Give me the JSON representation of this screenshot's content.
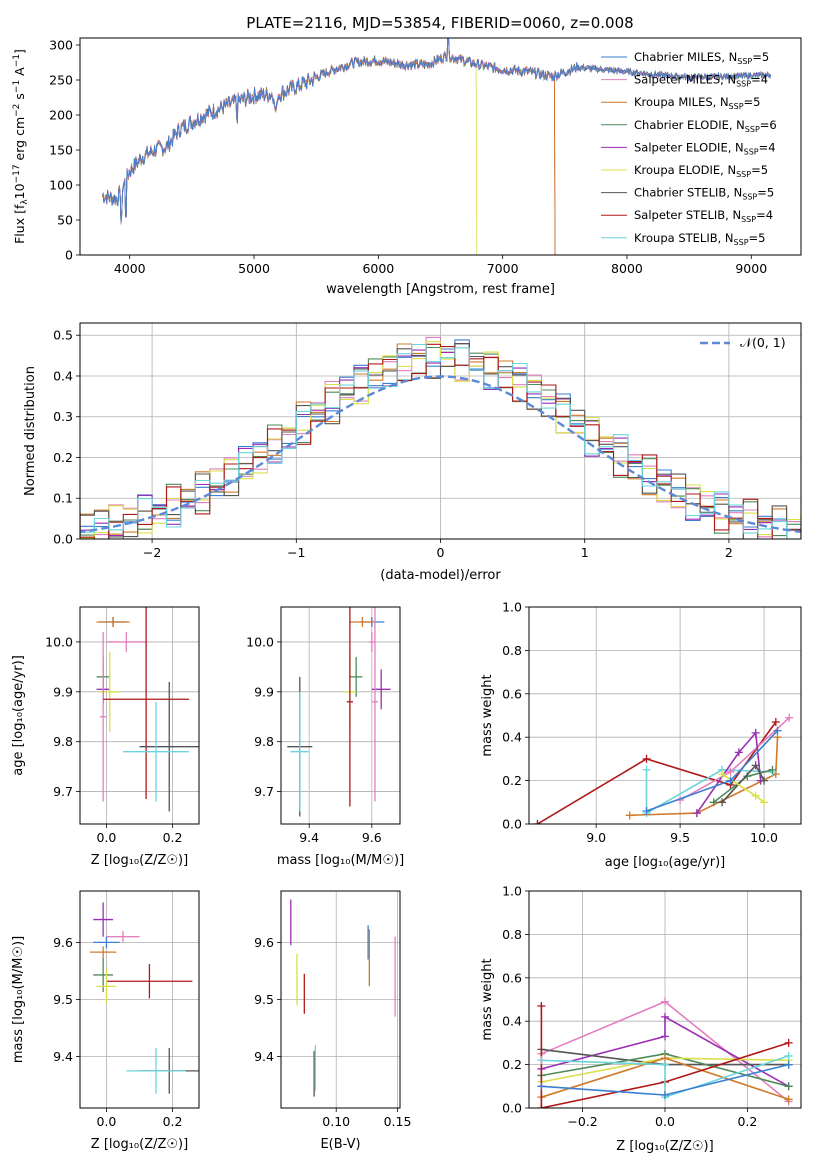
{
  "title": "PLATE=2116, MJD=53854, FIBERID=0060, z=0.008",
  "colors": {
    "c_miles": "#3a7fd0",
    "s_miles": "#e37fbf",
    "k_miles": "#d07a2a",
    "c_elodie": "#4f8a5a",
    "s_elodie": "#9a2fb5",
    "k_elodie": "#d9e04a",
    "c_stelib": "#555555",
    "s_stelib": "#b01818",
    "k_stelib": "#6cd4dc",
    "gauss": "#5b8ad6"
  },
  "legend_entries": [
    {
      "key": "c_miles",
      "prefix": "Chabrier MILES, N",
      "n": "5"
    },
    {
      "key": "s_miles",
      "prefix": "Salpeter MILES, N",
      "n": "4"
    },
    {
      "key": "k_miles",
      "prefix": "Kroupa MILES, N",
      "n": "5"
    },
    {
      "key": "c_elodie",
      "prefix": "Chabrier ELODIE, N",
      "n": "6"
    },
    {
      "key": "s_elodie",
      "prefix": "Salpeter ELODIE, N",
      "n": "4"
    },
    {
      "key": "k_elodie",
      "prefix": "Kroupa ELODIE, N",
      "n": "5"
    },
    {
      "key": "c_stelib",
      "prefix": "Chabrier STELIB, N",
      "n": "5"
    },
    {
      "key": "s_stelib",
      "prefix": "Salpeter STELIB, N",
      "n": "4"
    },
    {
      "key": "k_stelib",
      "prefix": "Kroupa STELIB, N",
      "n": "5"
    }
  ],
  "legend_sub": "SSP",
  "gauss_label": "𝒩(0, 1)",
  "chart_data": [
    {
      "id": "spectrum",
      "type": "line",
      "xlabel": "wavelength [Angstrom, rest frame]",
      "ylabel": "Flux [f",
      "ylabel_sub": "λ",
      "ylabel_mid": "10",
      "ylabel_sup1": "−17",
      "ylabel_tail": " erg cm",
      "ylabel_sup2": "−2",
      "ylabel_tail2": " s",
      "ylabel_sup3": "−1",
      "ylabel_tail3": " A",
      "ylabel_sup4": "−1",
      "ylabel_end": "]",
      "xlim": [
        3600,
        9400
      ],
      "ylim": [
        0,
        310
      ],
      "xticks": [
        4000,
        5000,
        6000,
        7000,
        8000,
        9000
      ],
      "yticks": [
        0,
        50,
        100,
        150,
        200,
        250,
        300
      ],
      "continuum": [
        [
          3780,
          85
        ],
        [
          3900,
          80
        ],
        [
          4000,
          120
        ],
        [
          4100,
          140
        ],
        [
          4200,
          150
        ],
        [
          4300,
          155
        ],
        [
          4400,
          180
        ],
        [
          4600,
          200
        ],
        [
          4800,
          215
        ],
        [
          5000,
          228
        ],
        [
          5200,
          230
        ],
        [
          5400,
          245
        ],
        [
          5600,
          262
        ],
        [
          5800,
          275
        ],
        [
          6000,
          278
        ],
        [
          6200,
          272
        ],
        [
          6400,
          272
        ],
        [
          6550,
          285
        ],
        [
          6800,
          272
        ],
        [
          7000,
          265
        ],
        [
          7200,
          262
        ],
        [
          7400,
          255
        ],
        [
          7600,
          268
        ],
        [
          7800,
          265
        ],
        [
          8000,
          262
        ],
        [
          8200,
          258
        ],
        [
          8500,
          254
        ],
        [
          8800,
          255
        ],
        [
          9100,
          257
        ]
      ],
      "cutoffs": [
        {
          "key": "k_elodie",
          "x": 6790
        },
        {
          "key": "s_stelib",
          "x": 7420
        },
        {
          "key": "k_miles",
          "x": 7420
        }
      ]
    },
    {
      "id": "residuals",
      "type": "step",
      "xlabel": "(data-model)/error",
      "ylabel": "Normed distribution",
      "xlim": [
        -2.5,
        2.5
      ],
      "ylim": [
        0,
        0.53
      ],
      "xticks": [
        -2,
        -1,
        0,
        1,
        2
      ],
      "xticklabels": [
        "−2",
        "−1",
        "0",
        "1",
        "2"
      ],
      "yticks": [
        0,
        0.1,
        0.2,
        0.3,
        0.4,
        0.5
      ],
      "bin_width": 0.1
    },
    {
      "id": "age_vs_Z",
      "type": "errorbar",
      "xlabel": "Z [log₁₀(Z/Z☉)]",
      "ylabel": "age  [log₁₀(age/yr)]",
      "xlim": [
        -0.08,
        0.28
      ],
      "ylim": [
        9.635,
        10.07
      ],
      "xticks": [
        0.0,
        0.2
      ],
      "yticks": [
        9.7,
        9.8,
        9.9,
        10.0
      ],
      "points": [
        {
          "key": "c_miles",
          "x": 0.02,
          "xerr": 0.04,
          "y": 10.04,
          "yerr": 0.01
        },
        {
          "key": "k_miles",
          "x": 0.02,
          "xerr": 0.05,
          "y": 10.04,
          "yerr": 0.01
        },
        {
          "key": "s_miles",
          "x": 0.06,
          "xerr": 0.06,
          "y": 10.0,
          "yerr": 0.02
        },
        {
          "key": "c_elodie",
          "x": -0.01,
          "xerr": 0.02,
          "y": 9.93,
          "yerr": 0.04
        },
        {
          "key": "s_elodie",
          "x": -0.01,
          "xerr": 0.02,
          "y": 9.905,
          "yerr": 0.03
        },
        {
          "key": "k_elodie",
          "x": 0.01,
          "xerr": 0.03,
          "y": 9.9,
          "yerr": 0.08
        },
        {
          "key": "s_miles",
          "x": -0.01,
          "xerr": 0.01,
          "y": 9.85,
          "yerr": 0.17
        },
        {
          "key": "s_stelib",
          "x": 0.12,
          "xerr": 0.13,
          "y": 9.885,
          "yerr": 0.2
        },
        {
          "key": "c_stelib",
          "x": 0.19,
          "xerr": 0.09,
          "y": 9.79,
          "yerr": 0.13
        },
        {
          "key": "k_stelib",
          "x": 0.15,
          "xerr": 0.1,
          "y": 9.78,
          "yerr": 0.1
        }
      ]
    },
    {
      "id": "age_vs_mass",
      "type": "errorbar",
      "xlabel": "mass [log₁₀(M/M☉)]",
      "ylabel": "",
      "xlim": [
        9.31,
        9.69
      ],
      "ylim": [
        9.635,
        10.07
      ],
      "xticks": [
        9.4,
        9.6
      ],
      "yticks": [
        9.7,
        9.8,
        9.9,
        10.0
      ],
      "points": [
        {
          "key": "c_miles",
          "x": 9.6,
          "xerr": 0.04,
          "y": 10.04,
          "yerr": 0.01
        },
        {
          "key": "k_miles",
          "x": 9.57,
          "xerr": 0.04,
          "y": 10.04,
          "yerr": 0.01
        },
        {
          "key": "s_miles",
          "x": 9.6,
          "xerr": 0.01,
          "y": 10.0,
          "yerr": 0.02
        },
        {
          "key": "c_elodie",
          "x": 9.55,
          "xerr": 0.02,
          "y": 9.93,
          "yerr": 0.04
        },
        {
          "key": "s_elodie",
          "x": 9.63,
          "xerr": 0.03,
          "y": 9.905,
          "yerr": 0.04
        },
        {
          "key": "k_elodie",
          "x": 9.53,
          "xerr": 0.02,
          "y": 9.9,
          "yerr": 0.08
        },
        {
          "key": "s_stelib",
          "x": 9.53,
          "xerr": 0.01,
          "y": 9.88,
          "yerr": 0.21
        },
        {
          "key": "c_stelib",
          "x": 9.37,
          "xerr": 0.04,
          "y": 9.79,
          "yerr": 0.14
        },
        {
          "key": "k_stelib",
          "x": 9.37,
          "xerr": 0.03,
          "y": 9.78,
          "yerr": 0.12
        },
        {
          "key": "s_miles",
          "x": 9.61,
          "xerr": 0.01,
          "y": 9.88,
          "yerr": 0.2
        }
      ]
    },
    {
      "id": "weight_vs_age",
      "type": "line",
      "xlabel": "age  [log₁₀(age/yr)]",
      "ylabel": "mass weight",
      "xlim": [
        8.6,
        10.22
      ],
      "ylim": [
        0,
        1
      ],
      "xticks": [
        9.0,
        9.5,
        10.0
      ],
      "yticks": [
        0,
        0.2,
        0.4,
        0.6,
        0.8,
        1.0
      ],
      "series": [
        {
          "key": "s_stelib",
          "x": [
            8.65,
            9.3,
            9.8,
            10.07
          ],
          "y": [
            0.0,
            0.3,
            0.18,
            0.47
          ]
        },
        {
          "key": "k_miles",
          "x": [
            9.2,
            9.6,
            10.07,
            10.08
          ],
          "y": [
            0.04,
            0.05,
            0.23,
            0.4
          ]
        },
        {
          "key": "k_stelib",
          "x": [
            9.3,
            9.3,
            9.75,
            10.05
          ],
          "y": [
            0.25,
            0.05,
            0.25,
            0.24
          ]
        },
        {
          "key": "s_miles",
          "x": [
            9.5,
            9.8,
            10.15
          ],
          "y": [
            0.11,
            0.24,
            0.49
          ]
        },
        {
          "key": "s_elodie",
          "x": [
            9.6,
            9.85,
            9.95,
            9.98
          ],
          "y": [
            0.05,
            0.33,
            0.42,
            0.2
          ]
        },
        {
          "key": "c_elodie",
          "x": [
            9.7,
            9.9,
            10.05
          ],
          "y": [
            0.1,
            0.22,
            0.25
          ]
        },
        {
          "key": "c_stelib",
          "x": [
            9.75,
            9.95,
            10.0
          ],
          "y": [
            0.1,
            0.27,
            0.2
          ]
        },
        {
          "key": "k_elodie",
          "x": [
            9.75,
            9.95,
            10.0
          ],
          "y": [
            0.23,
            0.13,
            0.1
          ]
        },
        {
          "key": "c_miles",
          "x": [
            9.3,
            9.8,
            10.08
          ],
          "y": [
            0.06,
            0.2,
            0.43
          ]
        }
      ]
    },
    {
      "id": "mass_vs_Z",
      "type": "errorbar",
      "xlabel": "Z [log₁₀(Z/Z☉)]",
      "ylabel": "mass [log₁₀(M/M☉)]",
      "xlim": [
        -0.08,
        0.28
      ],
      "ylim": [
        9.31,
        9.69
      ],
      "xticks": [
        0.0,
        0.2
      ],
      "yticks": [
        9.4,
        9.5,
        9.6
      ],
      "points": [
        {
          "key": "s_elodie",
          "x": -0.01,
          "xerr": 0.03,
          "y": 9.64,
          "yerr": 0.03
        },
        {
          "key": "s_miles",
          "x": 0.05,
          "xerr": 0.05,
          "y": 9.61,
          "yerr": 0.01
        },
        {
          "key": "c_miles",
          "x": 0.0,
          "xerr": 0.04,
          "y": 9.6,
          "yerr": 0.01
        },
        {
          "key": "k_miles",
          "x": -0.01,
          "xerr": 0.04,
          "y": 9.583,
          "yerr": 0.01
        },
        {
          "key": "c_elodie",
          "x": -0.01,
          "xerr": 0.03,
          "y": 9.543,
          "yerr": 0.03
        },
        {
          "key": "s_stelib",
          "x": 0.13,
          "xerr": 0.13,
          "y": 9.532,
          "yerr": 0.03
        },
        {
          "key": "k_elodie",
          "x": 0.0,
          "xerr": 0.03,
          "y": 9.523,
          "yerr": 0.03
        },
        {
          "key": "c_stelib",
          "x": 0.19,
          "xerr": 0.09,
          "y": 9.375,
          "yerr": 0.04
        },
        {
          "key": "k_stelib",
          "x": 0.15,
          "xerr": 0.09,
          "y": 9.375,
          "yerr": 0.04
        }
      ]
    },
    {
      "id": "mass_vs_ebv",
      "type": "errorbar",
      "xlabel": "E(B-V)",
      "ylabel": "",
      "xlim": [
        0.055,
        0.152
      ],
      "ylim": [
        9.31,
        9.69
      ],
      "xticks": [
        0.1,
        0.15
      ],
      "yticks": [
        9.4,
        9.5,
        9.6
      ],
      "points": [
        {
          "key": "s_elodie",
          "x": 0.063,
          "xerr": 0,
          "y": 9.635,
          "yerr": 0.04
        },
        {
          "key": "k_elodie",
          "x": 0.068,
          "xerr": 0,
          "y": 9.535,
          "yerr": 0.045
        },
        {
          "key": "s_stelib",
          "x": 0.074,
          "xerr": 0,
          "y": 9.51,
          "yerr": 0.035
        },
        {
          "key": "c_stelib",
          "x": 0.082,
          "xerr": 0,
          "y": 9.37,
          "yerr": 0.04
        },
        {
          "key": "k_stelib",
          "x": 0.083,
          "xerr": 0,
          "y": 9.38,
          "yerr": 0.04
        },
        {
          "key": "c_miles",
          "x": 0.126,
          "xerr": 0,
          "y": 9.6,
          "yerr": 0.03
        },
        {
          "key": "k_miles",
          "x": 0.127,
          "xerr": 0,
          "y": 9.573,
          "yerr": 0.05
        },
        {
          "key": "s_miles",
          "x": 0.148,
          "xerr": 0,
          "y": 9.54,
          "yerr": 0.07
        }
      ]
    },
    {
      "id": "weight_vs_Z",
      "type": "line",
      "xlabel": "Z [log₁₀(Z/Z☉)]",
      "ylabel": "mass weight",
      "xlim": [
        -0.33,
        0.33
      ],
      "ylim": [
        0,
        1
      ],
      "xticks": [
        -0.2,
        0.0,
        0.2
      ],
      "xticklabels": [
        "−0.2",
        "0.0",
        "0.2"
      ],
      "yticks": [
        0,
        0.2,
        0.4,
        0.6,
        0.8,
        1.0
      ],
      "series": [
        {
          "key": "s_miles",
          "x": [
            -0.3,
            0.0,
            0.3
          ],
          "y": [
            0.25,
            0.49,
            0.03
          ]
        },
        {
          "key": "s_elodie",
          "x": [
            -0.3,
            0.0,
            0.0,
            0.3
          ],
          "y": [
            0.18,
            0.33,
            0.42,
            0.1
          ]
        },
        {
          "key": "c_stelib",
          "x": [
            -0.3,
            0.0,
            0.3
          ],
          "y": [
            0.27,
            0.2,
            0.2
          ]
        },
        {
          "key": "c_elodie",
          "x": [
            -0.3,
            0.0,
            0.3
          ],
          "y": [
            0.15,
            0.25,
            0.1
          ]
        },
        {
          "key": "k_elodie",
          "x": [
            -0.3,
            0.0,
            0.3
          ],
          "y": [
            0.12,
            0.23,
            0.22
          ]
        },
        {
          "key": "k_miles",
          "x": [
            -0.3,
            0.0,
            0.3
          ],
          "y": [
            0.05,
            0.23,
            0.04
          ]
        },
        {
          "key": "s_stelib",
          "x": [
            -0.3,
            -0.3,
            0.0,
            0.3
          ],
          "y": [
            0.47,
            0.0,
            0.12,
            0.3
          ]
        },
        {
          "key": "k_stelib",
          "x": [
            -0.3,
            0.0,
            0.0,
            0.3
          ],
          "y": [
            0.22,
            0.2,
            0.05,
            0.24
          ]
        },
        {
          "key": "c_miles",
          "x": [
            -0.3,
            0.0,
            0.3
          ],
          "y": [
            0.1,
            0.06,
            0.2
          ]
        }
      ]
    }
  ]
}
